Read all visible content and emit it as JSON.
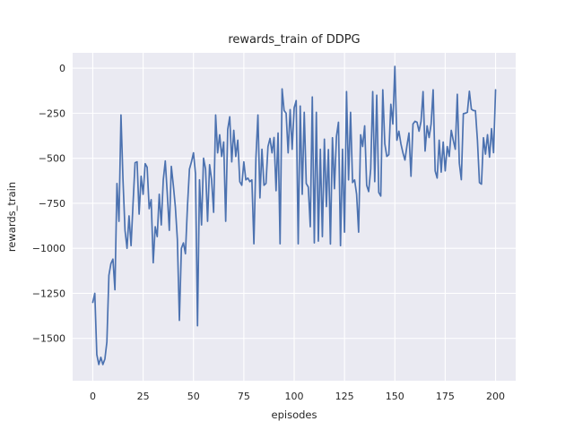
{
  "window": {
    "title": "rewards_train of DDPG"
  },
  "chart_data": {
    "type": "line",
    "title": "rewards_train of DDPG",
    "xlabel": "episodes",
    "ylabel": "rewards_train",
    "legend": "none",
    "grid": true,
    "background_color": "#eaeaf2",
    "grid_color": "#ffffff",
    "line_color": "#4c72b0",
    "text_color": "#262626",
    "figure_color": "#ffffff",
    "xlim": [
      -10,
      210
    ],
    "ylim": [
      -1735,
      85
    ],
    "x_ticks": [
      0,
      25,
      50,
      75,
      100,
      125,
      150,
      175,
      200
    ],
    "x_tick_labels": [
      "0",
      "25",
      "50",
      "75",
      "100",
      "125",
      "150",
      "175",
      "200"
    ],
    "y_ticks": [
      0,
      -250,
      -500,
      -750,
      -1000,
      -1250,
      -1500
    ],
    "y_tick_labels": [
      "0",
      "−250",
      "−500",
      "−750",
      "−1000",
      "−1250",
      "−1500"
    ],
    "x_description": "episodes 0 to 200, step 1 (x value = array index of y)",
    "y": [
      -1300,
      -1250,
      -1590,
      -1645,
      -1605,
      -1645,
      -1615,
      -1520,
      -1150,
      -1085,
      -1060,
      -1230,
      -640,
      -850,
      -260,
      -620,
      -900,
      -1000,
      -820,
      -985,
      -750,
      -525,
      -520,
      -810,
      -600,
      -700,
      -530,
      -550,
      -780,
      -730,
      -1080,
      -880,
      -935,
      -700,
      -870,
      -620,
      -515,
      -700,
      -900,
      -545,
      -650,
      -770,
      -950,
      -1400,
      -1000,
      -970,
      -1030,
      -770,
      -560,
      -520,
      -470,
      -585,
      -1430,
      -620,
      -870,
      -500,
      -560,
      -850,
      -536,
      -620,
      -800,
      -260,
      -470,
      -370,
      -490,
      -410,
      -850,
      -340,
      -270,
      -520,
      -345,
      -490,
      -400,
      -630,
      -650,
      -520,
      -620,
      -610,
      -630,
      -620,
      -975,
      -500,
      -260,
      -720,
      -450,
      -650,
      -640,
      -435,
      -390,
      -470,
      -385,
      -680,
      -360,
      -975,
      -115,
      -235,
      -250,
      -470,
      -230,
      -450,
      -220,
      -180,
      -975,
      -210,
      -700,
      -245,
      -640,
      -660,
      -880,
      -160,
      -970,
      -245,
      -960,
      -450,
      -935,
      -394,
      -768,
      -452,
      -976,
      -386,
      -669,
      -378,
      -300,
      -985,
      -450,
      -910,
      -130,
      -620,
      -245,
      -635,
      -620,
      -700,
      -910,
      -370,
      -435,
      -320,
      -650,
      -685,
      -560,
      -130,
      -630,
      -150,
      -690,
      -710,
      -120,
      -420,
      -490,
      -480,
      -200,
      -310,
      10,
      -400,
      -350,
      -420,
      -470,
      -510,
      -430,
      -360,
      -600,
      -310,
      -295,
      -300,
      -350,
      -295,
      -130,
      -460,
      -320,
      -385,
      -310,
      -120,
      -570,
      -610,
      -400,
      -577,
      -410,
      -570,
      -435,
      -490,
      -345,
      -400,
      -450,
      -145,
      -527,
      -619,
      -253,
      -250,
      -245,
      -128,
      -228,
      -235,
      -236,
      -400,
      -635,
      -644,
      -386,
      -477,
      -369,
      -494,
      -336,
      -469,
      -120
    ]
  }
}
